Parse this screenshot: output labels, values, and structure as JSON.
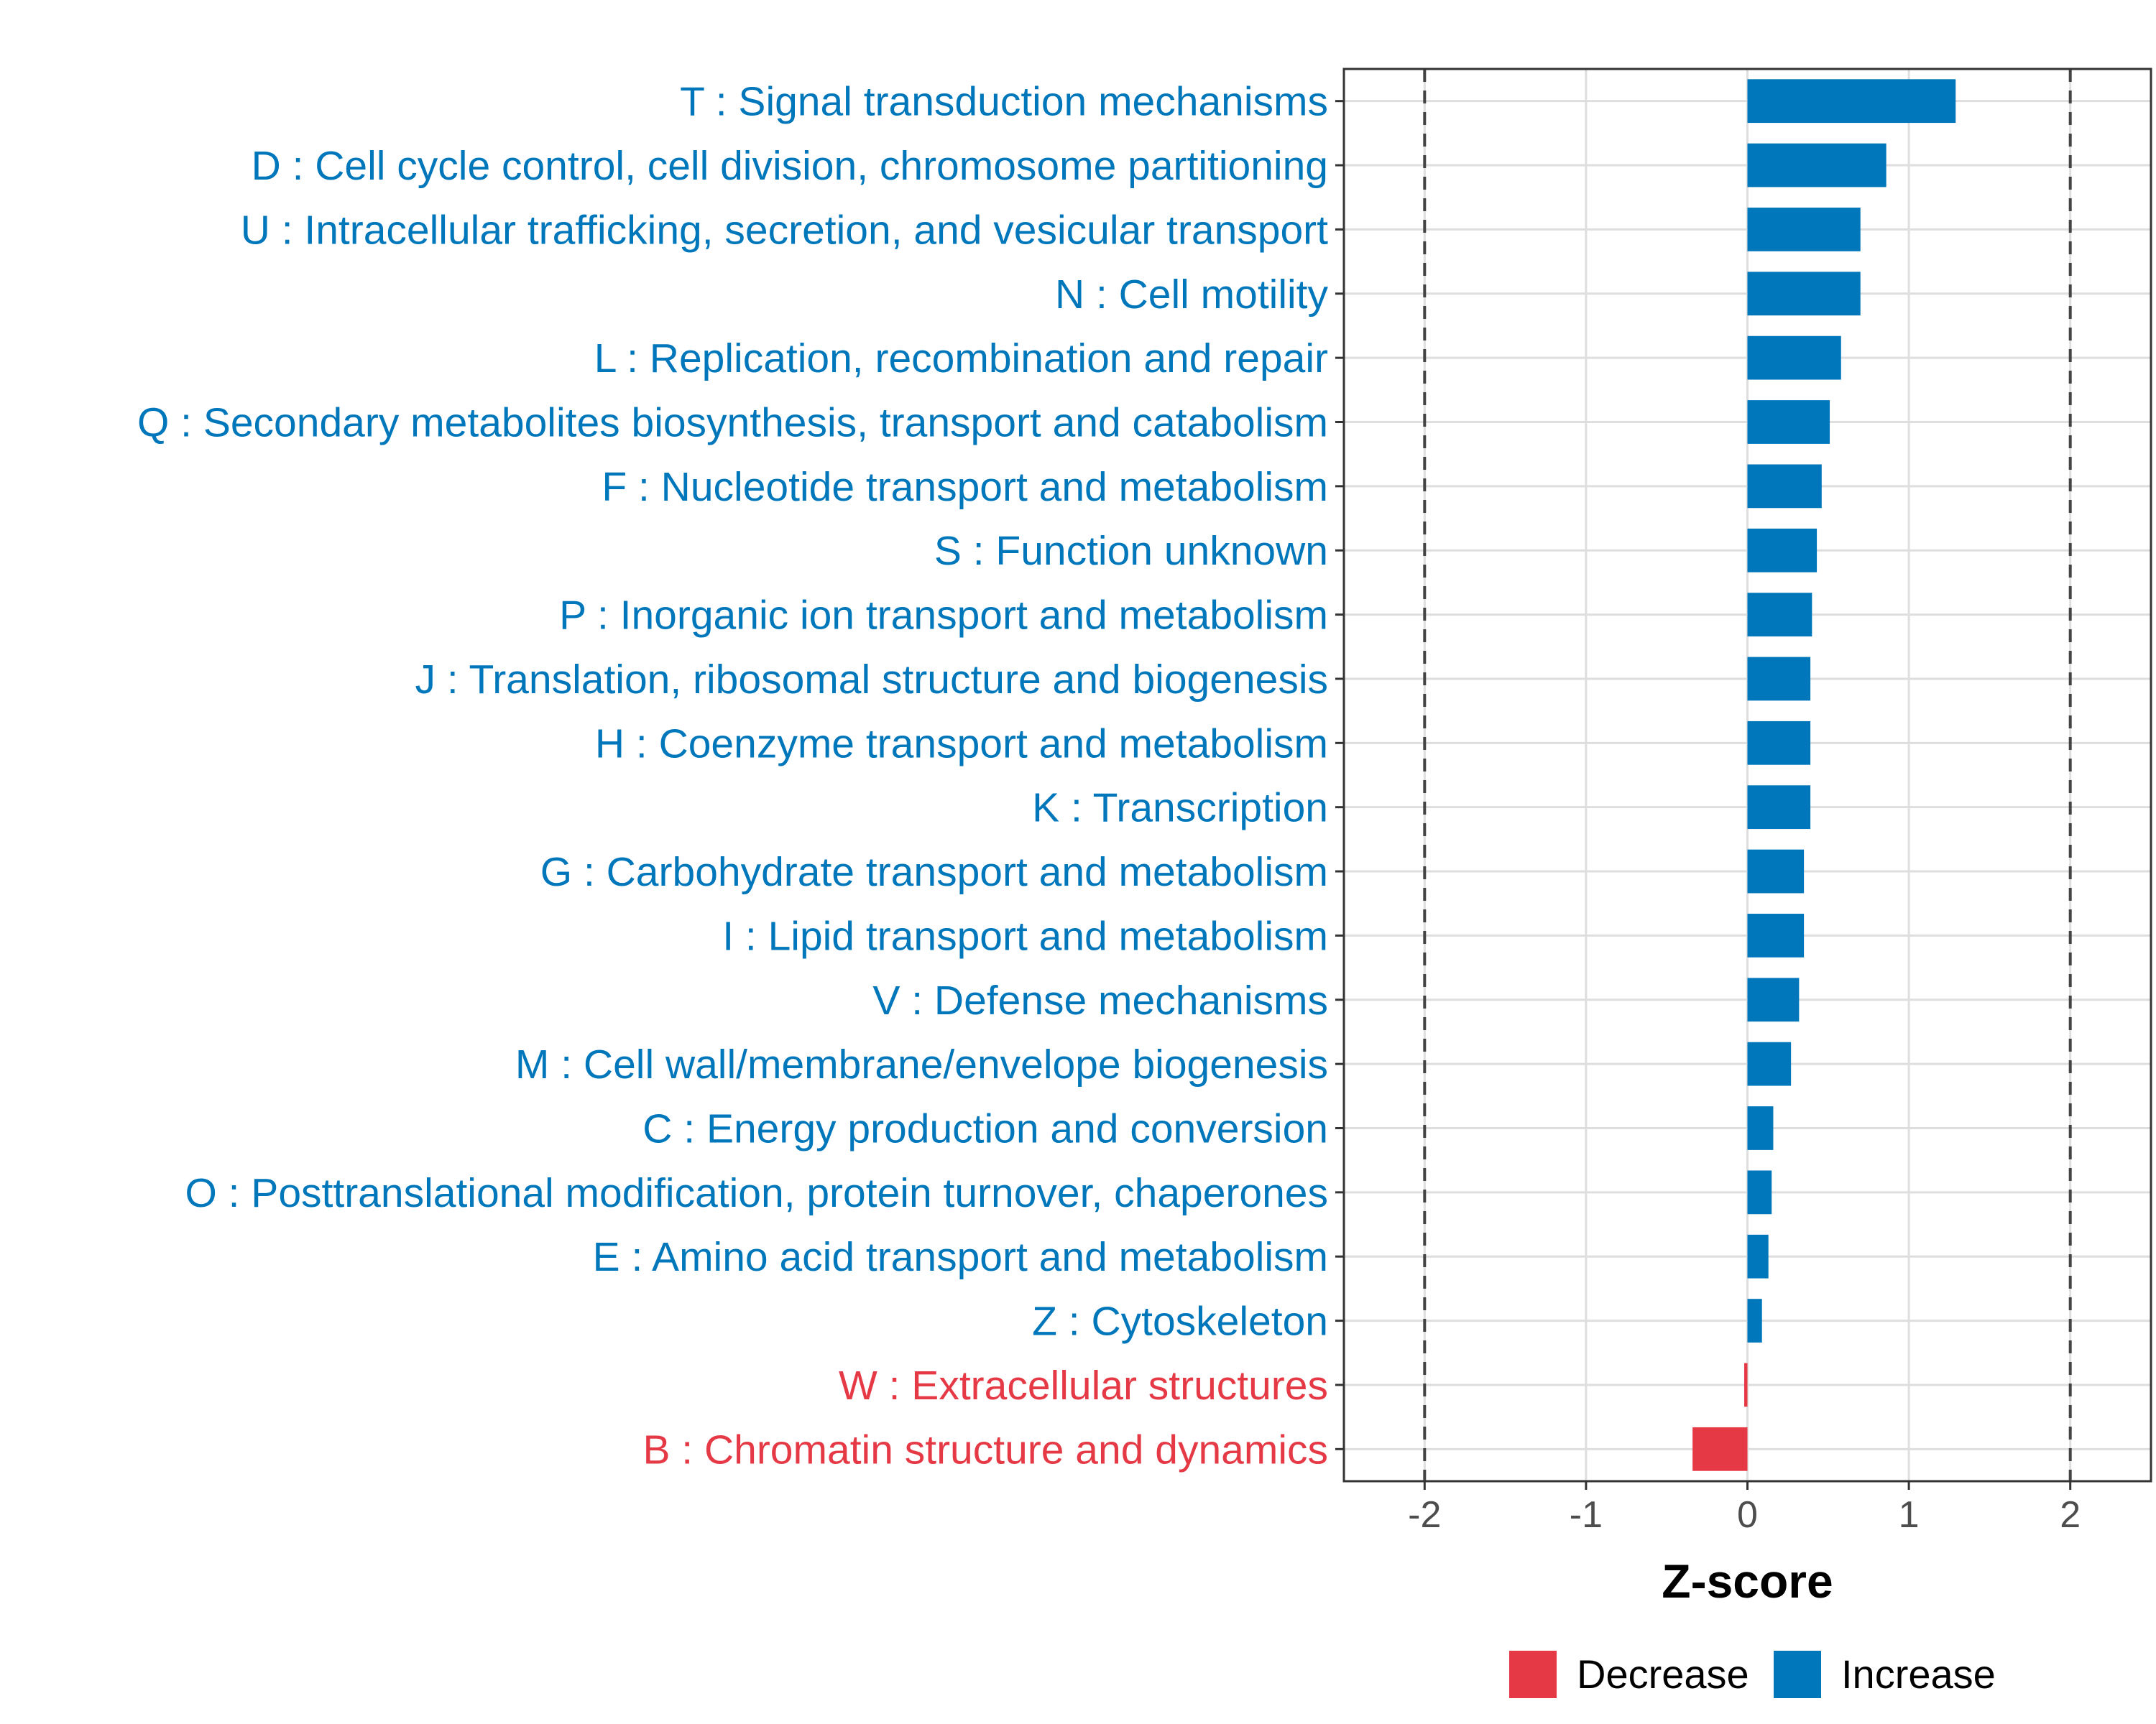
{
  "colors": {
    "increase": "#0077bb",
    "decrease": "#e63946"
  },
  "chart_data": {
    "type": "bar",
    "orientation": "horizontal",
    "title": "",
    "xlabel": "Z-score",
    "ylabel": "",
    "xlim": [
      -2.5,
      2.5
    ],
    "xticks": [
      -2,
      -1,
      0,
      1,
      2
    ],
    "xtick_labels": [
      "-2",
      "-1",
      "0",
      "1",
      "2"
    ],
    "reference_lines": [
      -2,
      2
    ],
    "grid": true,
    "legend_position": "bottom",
    "legend": [
      {
        "name": "Decrease",
        "color": "#e63946"
      },
      {
        "name": "Increase",
        "color": "#0077bb"
      }
    ],
    "categories": [
      "T : Signal transduction mechanisms",
      "D : Cell cycle control, cell division, chromosome partitioning",
      "U : Intracellular trafficking, secretion, and vesicular transport",
      "N : Cell motility",
      "L : Replication, recombination and repair",
      "Q : Secondary metabolites biosynthesis, transport and catabolism",
      "F : Nucleotide transport and metabolism",
      "S : Function unknown",
      "P : Inorganic ion transport and metabolism",
      "J : Translation, ribosomal structure and biogenesis",
      "H : Coenzyme transport and metabolism",
      "K : Transcription",
      "G : Carbohydrate transport and metabolism",
      "I : Lipid transport and metabolism",
      "V : Defense mechanisms",
      "M : Cell wall/membrane/envelope biogenesis",
      "C : Energy production and conversion",
      "O : Posttranslational modification, protein turnover, chaperones",
      "E : Amino acid transport and metabolism",
      "Z : Cytoskeleton",
      "W : Extracellular structures",
      "B : Chromatin structure and dynamics"
    ],
    "values": [
      1.29,
      0.86,
      0.7,
      0.7,
      0.58,
      0.51,
      0.46,
      0.43,
      0.4,
      0.39,
      0.39,
      0.39,
      0.35,
      0.35,
      0.32,
      0.27,
      0.16,
      0.15,
      0.13,
      0.09,
      -0.02,
      -0.34
    ],
    "groups": [
      "Increase",
      "Increase",
      "Increase",
      "Increase",
      "Increase",
      "Increase",
      "Increase",
      "Increase",
      "Increase",
      "Increase",
      "Increase",
      "Increase",
      "Increase",
      "Increase",
      "Increase",
      "Increase",
      "Increase",
      "Increase",
      "Increase",
      "Increase",
      "Decrease",
      "Decrease"
    ]
  }
}
